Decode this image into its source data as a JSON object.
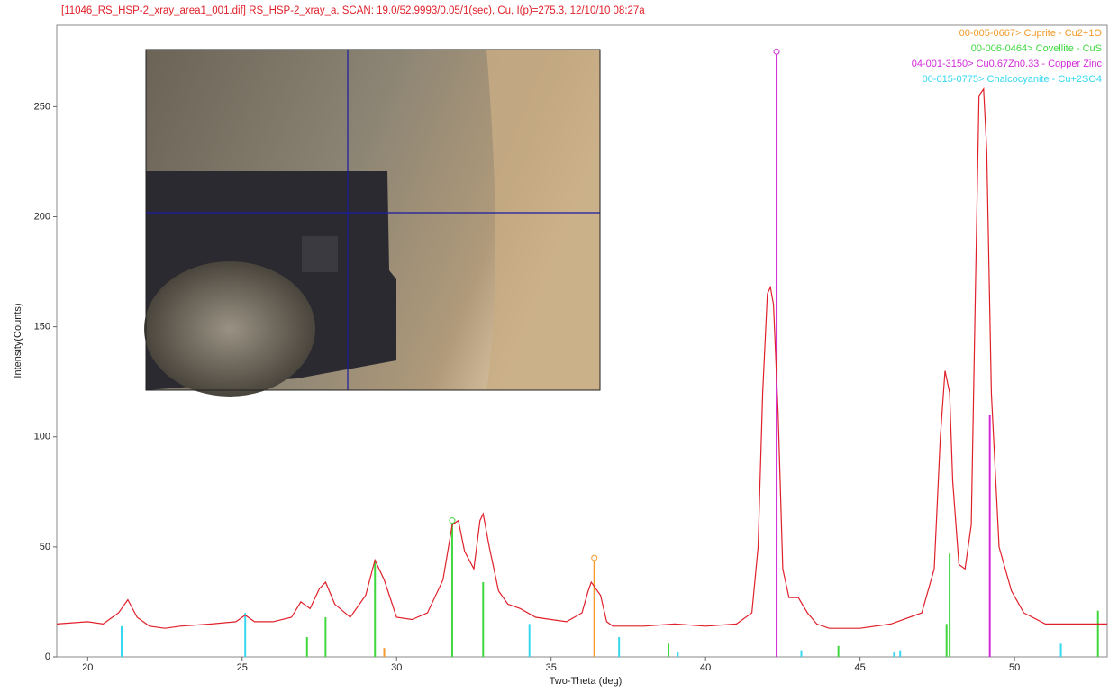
{
  "chart_data": {
    "type": "line",
    "title": "[11046_RS_HSP-2_xray_area1_001.dif] RS_HSP-2_xray_a, SCAN: 19.0/52.9993/0.05/1(sec), Cu, I(p)=275.3, 12/10/10 08:27a",
    "x_label": "Two-Theta (deg)",
    "y_label": "Intensity(Counts)",
    "xlim": [
      19,
      53
    ],
    "ylim": [
      0,
      287
    ],
    "xticks": [
      20,
      25,
      30,
      35,
      40,
      45,
      50
    ],
    "yticks": [
      0,
      50,
      100,
      150,
      200,
      250
    ],
    "color": "#e0202a",
    "x": [
      19.0,
      20,
      20.5,
      21.0,
      21.3,
      21.6,
      22,
      22.5,
      23,
      24,
      24.8,
      25.1,
      25.4,
      26,
      26.6,
      26.9,
      27.2,
      27.5,
      27.7,
      28.0,
      28.5,
      29.0,
      29.3,
      29.6,
      30,
      30.5,
      31,
      31.5,
      31.8,
      32.0,
      32.2,
      32.5,
      32.7,
      32.8,
      33.0,
      33.3,
      33.6,
      34,
      34.5,
      35,
      35.5,
      36.0,
      36.2,
      36.3,
      36.6,
      36.8,
      37,
      38,
      39,
      40,
      41,
      41.5,
      41.7,
      41.85,
      42.0,
      42.1,
      42.2,
      42.35,
      42.5,
      42.7,
      43.0,
      43.3,
      43.6,
      44,
      45,
      46,
      47,
      47.4,
      47.6,
      47.75,
      47.9,
      48.0,
      48.2,
      48.4,
      48.6,
      48.75,
      48.85,
      49.0,
      49.1,
      49.25,
      49.5,
      49.9,
      50.3,
      51,
      52,
      53
    ],
    "values": [
      15,
      16,
      15,
      20,
      26,
      18,
      14,
      13,
      14,
      15,
      16,
      19,
      16,
      16,
      18,
      25,
      22,
      31,
      34,
      24,
      18,
      28,
      44,
      35,
      18,
      17,
      20,
      35,
      60,
      62,
      48,
      40,
      62,
      65,
      50,
      30,
      24,
      22,
      18,
      17,
      16,
      20,
      30,
      34,
      28,
      16,
      14,
      14,
      15,
      14,
      15,
      20,
      50,
      120,
      165,
      168,
      160,
      110,
      40,
      27,
      27,
      20,
      15,
      13,
      13,
      15,
      20,
      40,
      100,
      130,
      120,
      80,
      42,
      40,
      60,
      180,
      255,
      258,
      230,
      120,
      50,
      30,
      20,
      15,
      15,
      15
    ],
    "reference_patterns": [
      {
        "name": "00-005-0667> Cuprite - Cu2+1O",
        "color": "#f39a2a",
        "marker": true,
        "x": [
          29.6,
          36.4
        ],
        "values": [
          4,
          45
        ]
      },
      {
        "name": "00-006-0464> Covellite - CuS",
        "color": "#3ed83e",
        "marker": true,
        "x": [
          27.1,
          27.7,
          29.3,
          31.8,
          32.8,
          38.8,
          44.3,
          47.8,
          47.9,
          52.7
        ],
        "values": [
          9,
          18,
          44,
          62,
          34,
          6,
          5,
          15,
          47,
          21
        ]
      },
      {
        "name": "04-001-3150> Cu0.67Zn0.33 - Copper Zinc",
        "color": "#d22ad8",
        "marker": true,
        "x": [
          42.3,
          49.2
        ],
        "values": [
          275,
          110
        ]
      },
      {
        "name": "00-015-0775> Chalcocyanite - Cu+2SO4",
        "color": "#36d8f0",
        "marker": false,
        "x": [
          21.1,
          25.1,
          34.3,
          37.2,
          39.1,
          43.1,
          46.1,
          46.3,
          51.5
        ],
        "values": [
          14,
          20,
          15,
          9,
          2,
          3,
          2,
          3,
          6
        ]
      }
    ]
  }
}
